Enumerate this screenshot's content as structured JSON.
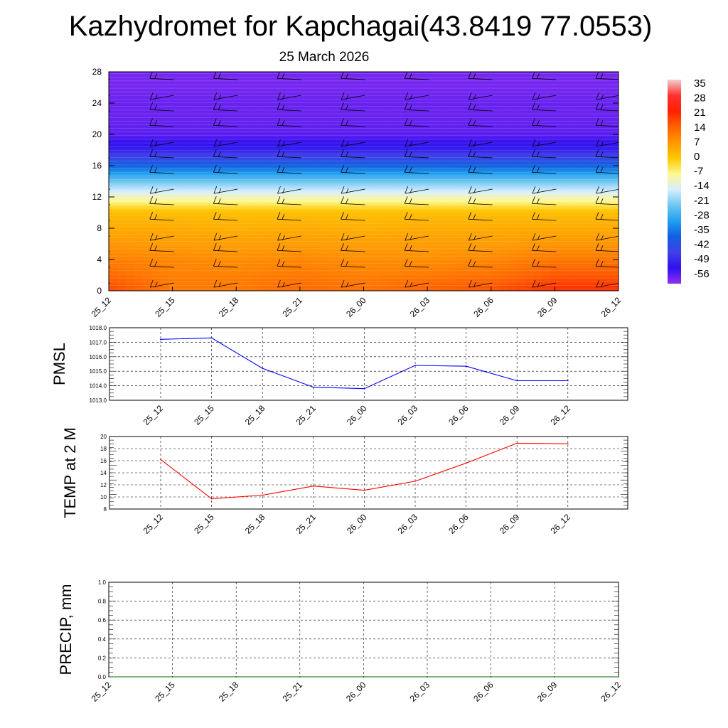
{
  "title": "Kazhydromet for Kapchagai(43.8419 77.0553)",
  "subtitle": "25 March 2026",
  "colorbar": {
    "labels": [
      "35",
      "28",
      "21",
      "14",
      "7",
      "0",
      "-7",
      "-14",
      "-21",
      "-28",
      "-35",
      "-42",
      "-49",
      "-56"
    ],
    "stops": [
      "#f0d0d0",
      "#ff3030",
      "#ff2000",
      "#ff6000",
      "#ff9800",
      "#ffc800",
      "#fff890",
      "#d8eeff",
      "#70c8f0",
      "#20a0f0",
      "#1060e0",
      "#4040e8",
      "#3010f0",
      "#9030f0"
    ]
  },
  "chart_data": [
    {
      "type": "heatmap",
      "title": "Temperature cross-section with wind barbs",
      "categories": [
        "25_12",
        "25_15",
        "25_18",
        "25_21",
        "26_00",
        "26_03",
        "26_06",
        "26_09",
        "26_12"
      ],
      "y_ticks": [
        "0",
        "4",
        "8",
        "12",
        "16",
        "20",
        "24",
        "28"
      ],
      "ylim": [
        0,
        28
      ],
      "y_levels": [
        0,
        2,
        4,
        6,
        8,
        10,
        12,
        14,
        16,
        18,
        20,
        22,
        24,
        26,
        28
      ],
      "values_by_level": [
        [
          16,
          10,
          10,
          12,
          11,
          13,
          15,
          19,
          19
        ],
        [
          12,
          9,
          9,
          10,
          9,
          10,
          11,
          14,
          14
        ],
        [
          9,
          8,
          7,
          8,
          7,
          7,
          8,
          10,
          10
        ],
        [
          6,
          5,
          5,
          5,
          5,
          5,
          5,
          6,
          6
        ],
        [
          3,
          3,
          2,
          3,
          2,
          3,
          3,
          3,
          3
        ],
        [
          0,
          0,
          0,
          0,
          0,
          0,
          0,
          0,
          0
        ],
        [
          -12,
          -12,
          -12,
          -12,
          -12,
          -12,
          -12,
          -12,
          -12
        ],
        [
          -24,
          -24,
          -24,
          -24,
          -24,
          -24,
          -24,
          -24,
          -24
        ],
        [
          -38,
          -38,
          -38,
          -38,
          -38,
          -38,
          -38,
          -38,
          -38
        ],
        [
          -50,
          -50,
          -50,
          -50,
          -50,
          -50,
          -50,
          -50,
          -50
        ],
        [
          -56,
          -56,
          -56,
          -56,
          -56,
          -56,
          -56,
          -56,
          -56
        ],
        [
          -57,
          -57,
          -57,
          -57,
          -57,
          -57,
          -57,
          -57,
          -57
        ],
        [
          -57,
          -57,
          -57,
          -57,
          -57,
          -57,
          -57,
          -57,
          -57
        ],
        [
          -58,
          -58,
          -58,
          -58,
          -58,
          -58,
          -58,
          -58,
          -58
        ],
        [
          -58,
          -58,
          -58,
          -58,
          -58,
          -58,
          -58,
          -58,
          -58
        ]
      ],
      "colorbar_range": [
        -60,
        35
      ],
      "barb_levels": [
        1,
        3,
        5,
        7,
        9,
        11,
        13,
        15,
        17,
        19,
        21,
        23,
        25,
        27
      ]
    },
    {
      "type": "line",
      "ylabel": "PMSL",
      "categories": [
        "25_12",
        "25_15",
        "25_18",
        "25_21",
        "26_00",
        "26_03",
        "26_06",
        "26_09",
        "26_12"
      ],
      "y_ticks": [
        "1013.0",
        "1014.0",
        "1015.0",
        "1016.0",
        "1017.0",
        "1018.0"
      ],
      "ylim": [
        1013,
        1018
      ],
      "series": [
        {
          "name": "PMSL",
          "color": "#0000ff",
          "values": [
            1017.2,
            1017.3,
            1015.2,
            1013.9,
            1013.8,
            1015.4,
            1015.35,
            1014.35,
            1014.35
          ]
        }
      ]
    },
    {
      "type": "line",
      "ylabel": "TEMP at 2 M",
      "categories": [
        "25_12",
        "25_15",
        "25_18",
        "25_21",
        "26_00",
        "26_03",
        "26_06",
        "26_09",
        "26_12"
      ],
      "y_ticks": [
        "8",
        "10",
        "12",
        "14",
        "16",
        "18",
        "20"
      ],
      "ylim": [
        8,
        20
      ],
      "series": [
        {
          "name": "TEMP at 2 M",
          "color": "#ff0000",
          "values": [
            16.2,
            9.7,
            10.3,
            11.8,
            11.1,
            12.6,
            15.6,
            18.9,
            18.8
          ]
        }
      ]
    },
    {
      "type": "line",
      "ylabel": "PRECIP, mm",
      "categories": [
        "25_12",
        "25_15",
        "25_18",
        "25_21",
        "26_00",
        "26_03",
        "26_06",
        "26_09",
        "26_12"
      ],
      "y_ticks": [
        "0.0",
        "0.2",
        "0.4",
        "0.6",
        "0.8",
        "1.0"
      ],
      "ylim": [
        0,
        1
      ],
      "series": [
        {
          "name": "PRECIP",
          "color": "#006400",
          "values": [
            0,
            0,
            0,
            0,
            0,
            0,
            0,
            0,
            0
          ]
        }
      ]
    }
  ]
}
